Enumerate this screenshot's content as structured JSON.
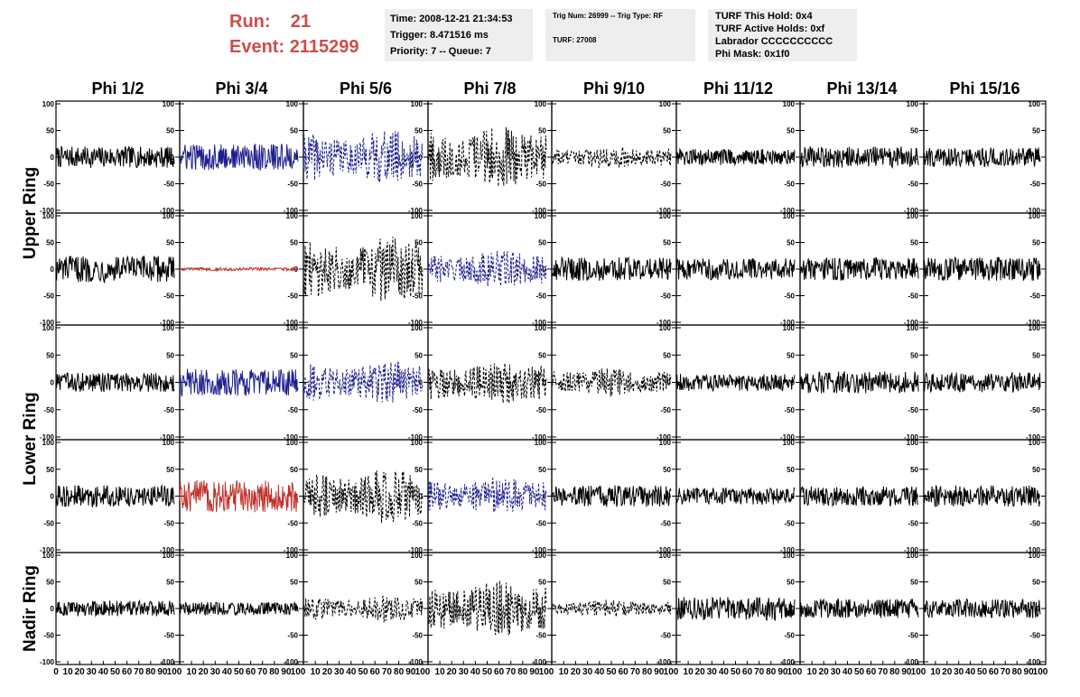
{
  "header": {
    "run_label": "Run:",
    "run_value": "21",
    "event_label": "Event:",
    "event_value": "2115299"
  },
  "info_box_1": {
    "time": "Time: 2008-12-21 21:34:53",
    "trigger": "Trigger: 8.471516 ms",
    "priority": "Priority: 7 -- Queue: 7"
  },
  "info_box_2": {
    "trig": "Trig Num: 26999 -- Trig Type: RF",
    "turf": "TURF: 27008"
  },
  "info_box_3": {
    "hold": "TURF This Hold: 0x4",
    "active": "TURF Active Holds: 0xf",
    "labrador": "Labrador CCCCCCCCCC",
    "mask": "Phi Mask: 0x1f0"
  },
  "colors": {
    "black": "#000000",
    "blue": "#1f1f8f",
    "red": "#c0302a",
    "title_red": "#cd4d4a"
  },
  "chart_data": {
    "type": "line",
    "columns": [
      "Phi 1/2",
      "Phi 3/4",
      "Phi 5/6",
      "Phi 7/8",
      "Phi 9/10",
      "Phi 11/12",
      "Phi 13/14",
      "Phi 15/16"
    ],
    "rings": [
      {
        "name": "Upper Ring",
        "rows": [
          0,
          1
        ]
      },
      {
        "name": "Lower Ring",
        "rows": [
          2,
          3
        ]
      },
      {
        "name": "Nadir Ring",
        "rows": [
          4
        ]
      }
    ],
    "xlim": [
      0,
      100
    ],
    "ylim": [
      -100,
      100
    ],
    "y_ticks": [
      100,
      50,
      0,
      -50,
      -100
    ],
    "x_tick_labels_first": [
      "0",
      "10",
      "20",
      "30",
      "40",
      "50",
      "60",
      "70",
      "80",
      "90",
      "100"
    ],
    "x_tick_labels_rest": [
      "10",
      "20",
      "30",
      "40",
      "50",
      "60",
      "70",
      "80",
      "90",
      "100"
    ],
    "panels": [
      [
        {
          "color": "black",
          "dash": false,
          "amp": 20
        },
        {
          "color": "blue",
          "dash": false,
          "amp": 25
        },
        {
          "color": "blue",
          "dash": true,
          "amp": 45
        },
        {
          "color": "black",
          "dash": true,
          "amp": 50
        },
        {
          "color": "black",
          "dash": true,
          "amp": 18
        },
        {
          "color": "black",
          "dash": false,
          "amp": 15
        },
        {
          "color": "black",
          "dash": false,
          "amp": 20
        },
        {
          "color": "black",
          "dash": false,
          "amp": 18
        }
      ],
      [
        {
          "color": "black",
          "dash": false,
          "amp": 25
        },
        {
          "color": "red",
          "dash": false,
          "amp": 3
        },
        {
          "color": "black",
          "dash": true,
          "amp": 55
        },
        {
          "color": "blue",
          "dash": true,
          "amp": 30
        },
        {
          "color": "black",
          "dash": false,
          "amp": 22
        },
        {
          "color": "black",
          "dash": false,
          "amp": 20
        },
        {
          "color": "black",
          "dash": false,
          "amp": 22
        },
        {
          "color": "black",
          "dash": false,
          "amp": 22
        }
      ],
      [
        {
          "color": "black",
          "dash": false,
          "amp": 18
        },
        {
          "color": "blue",
          "dash": false,
          "amp": 25
        },
        {
          "color": "blue",
          "dash": true,
          "amp": 35
        },
        {
          "color": "black",
          "dash": true,
          "amp": 35
        },
        {
          "color": "black",
          "dash": true,
          "amp": 22
        },
        {
          "color": "black",
          "dash": false,
          "amp": 16
        },
        {
          "color": "black",
          "dash": false,
          "amp": 20
        },
        {
          "color": "black",
          "dash": false,
          "amp": 18
        }
      ],
      [
        {
          "color": "black",
          "dash": false,
          "amp": 20
        },
        {
          "color": "red",
          "dash": false,
          "amp": 30
        },
        {
          "color": "black",
          "dash": true,
          "amp": 45
        },
        {
          "color": "blue",
          "dash": true,
          "amp": 30
        },
        {
          "color": "black",
          "dash": false,
          "amp": 20
        },
        {
          "color": "black",
          "dash": false,
          "amp": 16
        },
        {
          "color": "black",
          "dash": false,
          "amp": 18
        },
        {
          "color": "black",
          "dash": false,
          "amp": 20
        }
      ],
      [
        {
          "color": "black",
          "dash": false,
          "amp": 15
        },
        {
          "color": "black",
          "dash": false,
          "amp": 12
        },
        {
          "color": "black",
          "dash": true,
          "amp": 22
        },
        {
          "color": "black",
          "dash": true,
          "amp": 45
        },
        {
          "color": "black",
          "dash": true,
          "amp": 14
        },
        {
          "color": "black",
          "dash": false,
          "amp": 22
        },
        {
          "color": "black",
          "dash": false,
          "amp": 18
        },
        {
          "color": "black",
          "dash": false,
          "amp": 18
        }
      ]
    ]
  }
}
